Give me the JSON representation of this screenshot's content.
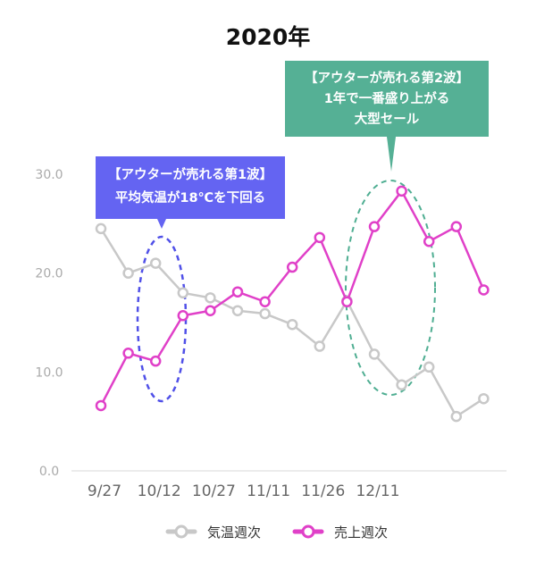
{
  "chart_data": {
    "type": "line",
    "title": "2020年",
    "ylim": [
      0,
      30
    ],
    "yticks": [
      "0.0",
      "10.0",
      "20.0",
      "30.0"
    ],
    "xticks": [
      "9/27",
      "10/12",
      "10/27",
      "11/11",
      "11/26",
      "12/11"
    ],
    "grid": false,
    "legend_position": "bottom-center",
    "series": [
      {
        "name": "気温週次",
        "color": "#c8c8c8",
        "values": [
          24.5,
          20.0,
          21.0,
          18.0,
          17.5,
          16.2,
          15.9,
          14.8,
          12.6,
          17.2,
          11.8,
          8.7,
          10.5,
          5.5,
          7.3
        ]
      },
      {
        "name": "売上週次",
        "color": "#e040c8",
        "values": [
          6.6,
          11.9,
          11.1,
          15.7,
          16.2,
          18.1,
          17.1,
          20.6,
          23.6,
          17.1,
          24.7,
          28.3,
          23.2,
          24.7,
          18.3
        ]
      }
    ],
    "annotations": [
      {
        "lines": [
          "【アウターが売れる第1波】",
          "平均気温が18℃を下回る"
        ],
        "color": "#6060f0"
      },
      {
        "lines": [
          "【アウターが売れる第2波】",
          "1年で一番盛り上がる",
          "大型セール"
        ],
        "color": "#52b095"
      }
    ]
  }
}
